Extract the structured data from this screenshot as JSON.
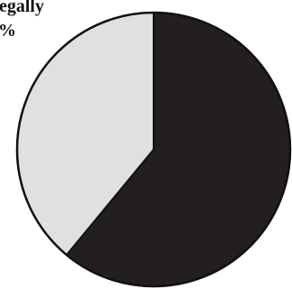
{
  "chart_data": {
    "type": "pie",
    "slices": [
      {
        "value": 61,
        "color": "#231f20"
      },
      {
        "value": 39,
        "color": "#dfe0e2"
      }
    ],
    "visible_text": {
      "label_line_1": "egally",
      "label_line_2": "%"
    },
    "outline_color": "#111111",
    "background": "#ffffff"
  }
}
